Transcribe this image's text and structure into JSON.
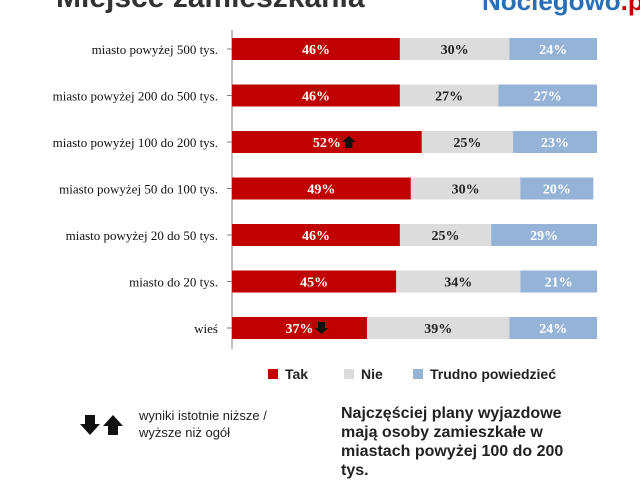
{
  "header": {
    "title": "Miejsce zamieszkania",
    "brand_main": "Noclegowo",
    "brand_suffix": ".pl"
  },
  "colors": {
    "tak": "#c00000",
    "nie": "#dcdcdc",
    "trudno": "#95b3d7",
    "axis": "#7f7f7f"
  },
  "chart_data": {
    "type": "bar",
    "orientation": "horizontal",
    "stacked": true,
    "unit": "%",
    "categories": [
      "miasto powyżej 500 tys.",
      "miasto powyżej 200 do 500 tys.",
      "miasto powyżej 100 do 200 tys.",
      "miasto powyżej 50 do 100 tys.",
      "miasto powyżej 20 do 50 tys.",
      "miasto do 20 tys.",
      "wieś"
    ],
    "series": [
      {
        "name": "Tak",
        "values": [
          46,
          46,
          52,
          49,
          46,
          45,
          37
        ]
      },
      {
        "name": "Nie",
        "values": [
          30,
          27,
          25,
          30,
          25,
          34,
          39
        ]
      },
      {
        "name": "Trudno powiedzieć",
        "values": [
          24,
          27,
          23,
          20,
          29,
          21,
          24
        ]
      }
    ],
    "significance_markers": [
      {
        "category": "miasto powyżej 100 do 200 tys.",
        "series": "Tak",
        "direction": "up"
      },
      {
        "category": "wieś",
        "series": "Tak",
        "direction": "down"
      }
    ],
    "legend_position": "bottom",
    "grid": false,
    "xlim": [
      0,
      100
    ]
  },
  "legend": {
    "tak": "Tak",
    "nie": "Nie",
    "trudno": "Trudno powiedzieć"
  },
  "notes": {
    "arrow_legend": "wyniki istotnie niższe / wyższe niż ogół",
    "summary": "Najczęściej plany wyjazdowe mają osoby zamieszkałe w miastach powyżej 100 do 200 tys."
  }
}
